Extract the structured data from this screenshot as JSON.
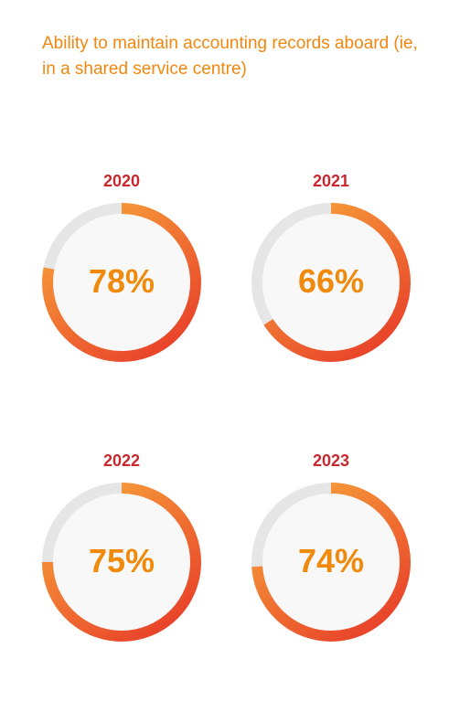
{
  "chart_data": {
    "type": "donut",
    "title": "Ability to maintain accounting records aboard (ie, in a shared service centre)",
    "categories": [
      "2020",
      "2021",
      "2022",
      "2023"
    ],
    "values": [
      78,
      66,
      75,
      74
    ],
    "labels": [
      "78%",
      "66%",
      "75%",
      "74%"
    ],
    "value_unit": "percent",
    "colors": {
      "title": "#f2870f",
      "year_label": "#c8282e",
      "value_label": "#f08a0c",
      "arc_start": "#f7a23a",
      "arc_end": "#e8412a",
      "track": "#e6e6e6",
      "inner": "#f7f8f7"
    }
  }
}
